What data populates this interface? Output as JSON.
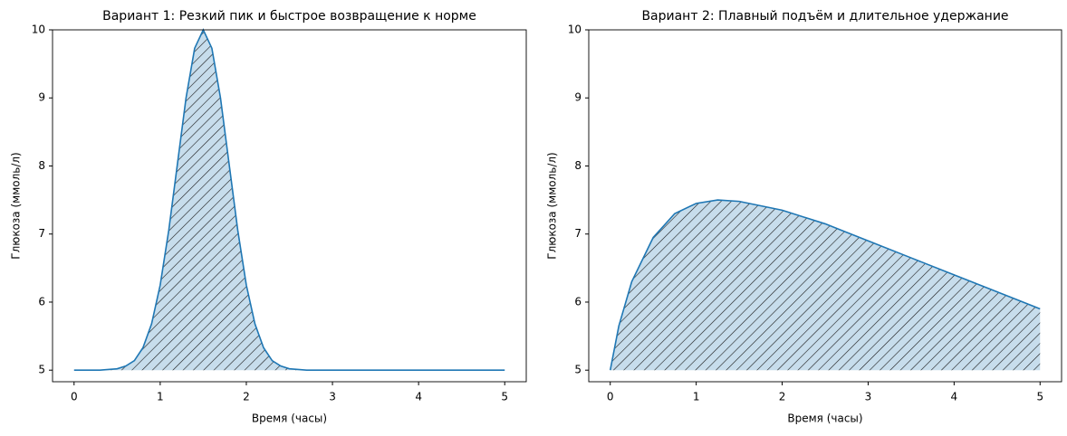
{
  "chart_data": [
    {
      "type": "area",
      "title": "Вариант 1: Резкий пик и быстрое возвращение к норме",
      "xlabel": "Время (часы)",
      "ylabel": "Глюкоза (ммоль/л)",
      "x": [
        0,
        0.1,
        0.2,
        0.3,
        0.4,
        0.5,
        0.6,
        0.7,
        0.8,
        0.9,
        1.0,
        1.1,
        1.2,
        1.3,
        1.4,
        1.5,
        1.6,
        1.7,
        1.8,
        1.9,
        2.0,
        2.1,
        2.2,
        2.3,
        2.4,
        2.5,
        2.6,
        2.7,
        2.8,
        2.9,
        3.0,
        3.5,
        4.0,
        4.5,
        5.0
      ],
      "values": [
        5.0,
        5.0,
        5.0,
        5.0,
        5.01,
        5.02,
        5.06,
        5.14,
        5.33,
        5.68,
        6.25,
        7.06,
        8.03,
        9.0,
        9.73,
        10.0,
        9.73,
        9.0,
        8.03,
        7.06,
        6.25,
        5.68,
        5.33,
        5.14,
        5.06,
        5.02,
        5.01,
        5.0,
        5.0,
        5.0,
        5.0,
        5.0,
        5.0,
        5.0,
        5.0
      ],
      "color": "#1f77b4",
      "fill_baseline": 5,
      "xlim": [
        -0.25,
        5.25
      ],
      "xticks": [
        0,
        1,
        2,
        3,
        4,
        5
      ],
      "ylim": [
        4.83,
        10
      ],
      "yticks": [
        5,
        6,
        7,
        8,
        9,
        10
      ]
    },
    {
      "type": "area",
      "title": "Вариант 2: Плавный подъём и длительное удержание",
      "xlabel": "Время (часы)",
      "ylabel": "Глюкоза (ммоль/л)",
      "x": [
        0,
        0.1,
        0.25,
        0.5,
        0.75,
        1.0,
        1.25,
        1.5,
        2.0,
        2.5,
        3.0,
        3.5,
        4.0,
        4.5,
        5.0
      ],
      "values": [
        5.0,
        5.65,
        6.3,
        6.95,
        7.3,
        7.45,
        7.5,
        7.48,
        7.35,
        7.15,
        6.9,
        6.65,
        6.4,
        6.15,
        5.9
      ],
      "color": "#1f77b4",
      "fill_baseline": 5,
      "xlim": [
        -0.25,
        5.25
      ],
      "xticks": [
        0,
        1,
        2,
        3,
        4,
        5
      ],
      "ylim": [
        4.83,
        10
      ],
      "yticks": [
        5,
        6,
        7,
        8,
        9,
        10
      ]
    }
  ]
}
